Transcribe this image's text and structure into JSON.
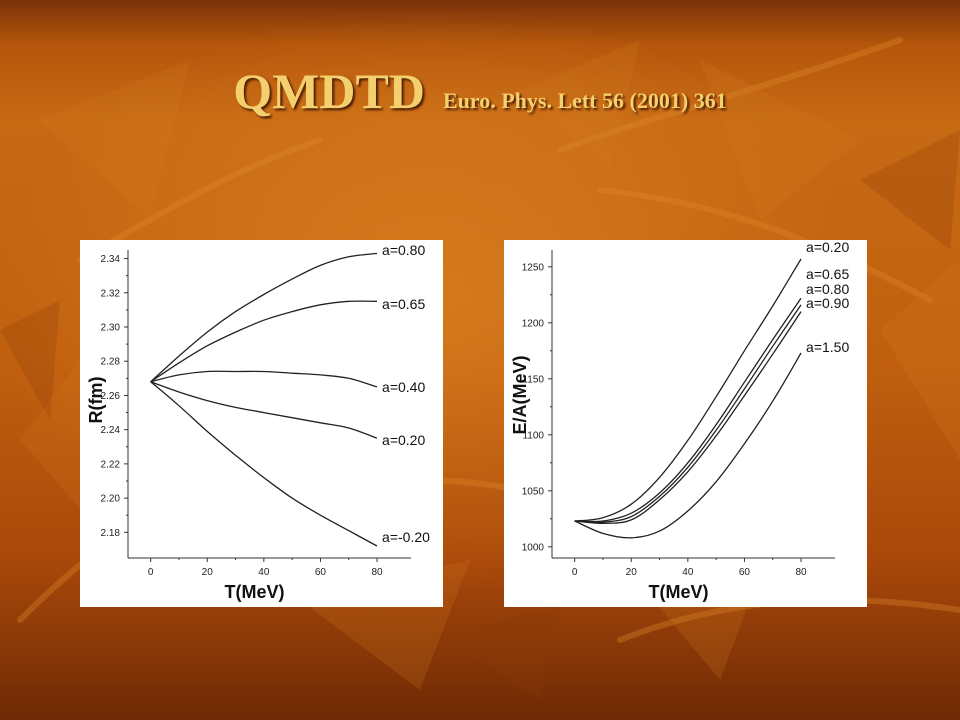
{
  "title": {
    "main": "QMDTD",
    "reference": "Euro. Phys. Lett 56 (2001) 361"
  },
  "colors": {
    "title_text": "#f3cf6e",
    "background_dark": "#7a3208",
    "background_mid": "#c76a14",
    "curve": "#222222"
  },
  "chart_data": [
    {
      "type": "line",
      "xlabel": "T(MeV)",
      "ylabel": "R(fm)",
      "xlim": [
        -8,
        92
      ],
      "ylim": [
        2.165,
        2.345
      ],
      "xticks": [
        0,
        20,
        40,
        60,
        80
      ],
      "xtick_labels": [
        "0",
        "20",
        "40",
        "60",
        "80"
      ],
      "yticks": [
        2.18,
        2.2,
        2.22,
        2.24,
        2.26,
        2.28,
        2.3,
        2.32,
        2.34
      ],
      "ytick_labels": [
        "2.18",
        "2.20",
        "2.22",
        "2.24",
        "2.26",
        "2.28",
        "2.30",
        "2.32",
        "2.34"
      ],
      "series": [
        {
          "name": "a=0.80",
          "x": [
            0,
            10,
            20,
            30,
            40,
            50,
            60,
            70,
            80
          ],
          "y": [
            2.268,
            2.283,
            2.297,
            2.309,
            2.319,
            2.328,
            2.336,
            2.341,
            2.343
          ]
        },
        {
          "name": "a=0.65",
          "x": [
            0,
            10,
            20,
            30,
            40,
            50,
            60,
            70,
            80
          ],
          "y": [
            2.268,
            2.279,
            2.289,
            2.297,
            2.304,
            2.309,
            2.313,
            2.315,
            2.315
          ]
        },
        {
          "name": "a=0.40",
          "x": [
            0,
            10,
            20,
            30,
            40,
            50,
            60,
            70,
            80
          ],
          "y": [
            2.268,
            2.272,
            2.274,
            2.274,
            2.274,
            2.273,
            2.272,
            2.27,
            2.265
          ]
        },
        {
          "name": "a=0.20",
          "x": [
            0,
            10,
            20,
            30,
            40,
            50,
            60,
            70,
            80
          ],
          "y": [
            2.268,
            2.262,
            2.257,
            2.253,
            2.25,
            2.247,
            2.244,
            2.241,
            2.235
          ]
        },
        {
          "name": "a=-0.20",
          "x": [
            0,
            10,
            20,
            30,
            40,
            50,
            60,
            70,
            80
          ],
          "y": [
            2.268,
            2.254,
            2.239,
            2.225,
            2.212,
            2.2,
            2.19,
            2.181,
            2.172
          ]
        }
      ]
    },
    {
      "type": "line",
      "xlabel": "T(MeV)",
      "ylabel": "E/A(MeV)",
      "xlim": [
        -8,
        92
      ],
      "ylim": [
        990,
        1265
      ],
      "xticks": [
        0,
        20,
        40,
        60,
        80
      ],
      "xtick_labels": [
        "0",
        "20",
        "40",
        "60",
        "80"
      ],
      "yticks": [
        1000,
        1050,
        1100,
        1150,
        1200,
        1250
      ],
      "ytick_labels": [
        "1000",
        "1050",
        "1100",
        "1150",
        "1200",
        "1250"
      ],
      "series": [
        {
          "name": "a=0.20",
          "x": [
            0,
            10,
            20,
            30,
            40,
            50,
            60,
            70,
            80
          ],
          "y": [
            1023,
            1026,
            1038,
            1062,
            1095,
            1134,
            1175,
            1215,
            1257
          ]
        },
        {
          "name": "a=0.65",
          "x": [
            0,
            10,
            20,
            30,
            40,
            50,
            60,
            70,
            80
          ],
          "y": [
            1023,
            1023,
            1030,
            1048,
            1075,
            1109,
            1147,
            1185,
            1222
          ]
        },
        {
          "name": "a=0.80",
          "x": [
            0,
            10,
            20,
            30,
            40,
            50,
            60,
            70,
            80
          ],
          "y": [
            1023,
            1022,
            1027,
            1045,
            1071,
            1104,
            1141,
            1179,
            1216
          ]
        },
        {
          "name": "a=0.90",
          "x": [
            0,
            10,
            20,
            30,
            40,
            50,
            60,
            70,
            80
          ],
          "y": [
            1023,
            1021,
            1024,
            1042,
            1067,
            1099,
            1135,
            1172,
            1210
          ]
        },
        {
          "name": "a=1.50",
          "x": [
            0,
            10,
            20,
            30,
            40,
            50,
            60,
            70,
            80
          ],
          "y": [
            1023,
            1012,
            1008,
            1014,
            1032,
            1058,
            1092,
            1130,
            1173
          ]
        }
      ]
    }
  ]
}
